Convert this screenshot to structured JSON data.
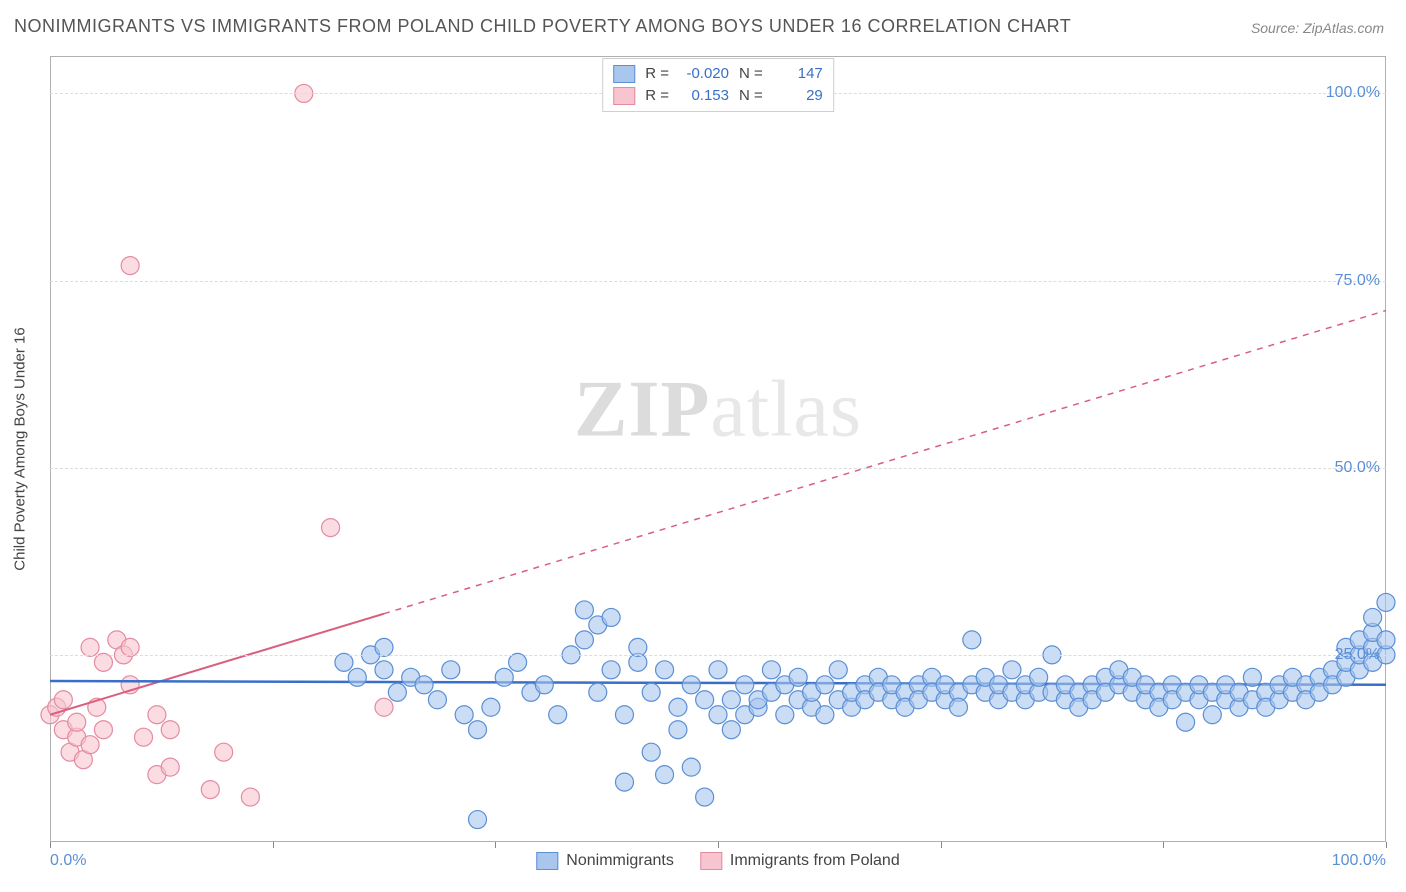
{
  "title": "NONIMMIGRANTS VS IMMIGRANTS FROM POLAND CHILD POVERTY AMONG BOYS UNDER 16 CORRELATION CHART",
  "source": "Source: ZipAtlas.com",
  "ylabel": "Child Poverty Among Boys Under 16",
  "watermark_a": "ZIP",
  "watermark_b": "atlas",
  "chart": {
    "type": "scatter",
    "xlim": [
      0,
      100
    ],
    "ylim": [
      0,
      105
    ],
    "yticks": [
      25,
      50,
      75,
      100
    ],
    "ytick_labels": [
      "25.0%",
      "50.0%",
      "75.0%",
      "100.0%"
    ],
    "xtick_marks": [
      0,
      16.67,
      33.33,
      50,
      66.67,
      83.33,
      100
    ],
    "xaxis_left": "0.0%",
    "xaxis_right": "100.0%",
    "grid_color": "#dcdcdc",
    "axis_color": "#b0b0b0",
    "series": {
      "blue": {
        "label": "Nonimmigrants",
        "fill": "#a9c7ec",
        "stroke": "#5b8fd6",
        "fill_opacity": 0.6,
        "marker_r": 9,
        "trend": {
          "y_at_x0": 21.5,
          "y_at_x100": 21.0,
          "color": "#3a6fc9",
          "width": 2.5
        },
        "R": "-0.020",
        "N": "147",
        "points": [
          [
            22,
            24
          ],
          [
            23,
            22
          ],
          [
            24,
            25
          ],
          [
            25,
            26
          ],
          [
            25,
            23
          ],
          [
            26,
            20
          ],
          [
            27,
            22
          ],
          [
            28,
            21
          ],
          [
            29,
            19
          ],
          [
            30,
            23
          ],
          [
            31,
            17
          ],
          [
            32,
            15
          ],
          [
            32,
            3
          ],
          [
            33,
            18
          ],
          [
            34,
            22
          ],
          [
            35,
            24
          ],
          [
            36,
            20
          ],
          [
            37,
            21
          ],
          [
            38,
            17
          ],
          [
            39,
            25
          ],
          [
            40,
            27
          ],
          [
            40,
            31
          ],
          [
            41,
            20
          ],
          [
            41,
            29
          ],
          [
            42,
            23
          ],
          [
            42,
            30
          ],
          [
            43,
            8
          ],
          [
            43,
            17
          ],
          [
            44,
            24
          ],
          [
            44,
            26
          ],
          [
            45,
            12
          ],
          [
            45,
            20
          ],
          [
            46,
            23
          ],
          [
            46,
            9
          ],
          [
            47,
            15
          ],
          [
            47,
            18
          ],
          [
            48,
            10
          ],
          [
            48,
            21
          ],
          [
            49,
            19
          ],
          [
            49,
            6
          ],
          [
            50,
            17
          ],
          [
            50,
            23
          ],
          [
            51,
            19
          ],
          [
            51,
            15
          ],
          [
            52,
            17
          ],
          [
            52,
            21
          ],
          [
            53,
            18
          ],
          [
            53,
            19
          ],
          [
            54,
            20
          ],
          [
            54,
            23
          ],
          [
            55,
            17
          ],
          [
            55,
            21
          ],
          [
            56,
            19
          ],
          [
            56,
            22
          ],
          [
            57,
            18
          ],
          [
            57,
            20
          ],
          [
            58,
            17
          ],
          [
            58,
            21
          ],
          [
            59,
            19
          ],
          [
            59,
            23
          ],
          [
            60,
            18
          ],
          [
            60,
            20
          ],
          [
            61,
            21
          ],
          [
            61,
            19
          ],
          [
            62,
            22
          ],
          [
            62,
            20
          ],
          [
            63,
            19
          ],
          [
            63,
            21
          ],
          [
            64,
            20
          ],
          [
            64,
            18
          ],
          [
            65,
            21
          ],
          [
            65,
            19
          ],
          [
            66,
            22
          ],
          [
            66,
            20
          ],
          [
            67,
            19
          ],
          [
            67,
            21
          ],
          [
            68,
            20
          ],
          [
            68,
            18
          ],
          [
            69,
            21
          ],
          [
            69,
            27
          ],
          [
            70,
            20
          ],
          [
            70,
            22
          ],
          [
            71,
            19
          ],
          [
            71,
            21
          ],
          [
            72,
            20
          ],
          [
            72,
            23
          ],
          [
            73,
            19
          ],
          [
            73,
            21
          ],
          [
            74,
            20
          ],
          [
            74,
            22
          ],
          [
            75,
            25
          ],
          [
            75,
            20
          ],
          [
            76,
            19
          ],
          [
            76,
            21
          ],
          [
            77,
            20
          ],
          [
            77,
            18
          ],
          [
            78,
            21
          ],
          [
            78,
            19
          ],
          [
            79,
            22
          ],
          [
            79,
            20
          ],
          [
            80,
            21
          ],
          [
            80,
            23
          ],
          [
            81,
            20
          ],
          [
            81,
            22
          ],
          [
            82,
            19
          ],
          [
            82,
            21
          ],
          [
            83,
            20
          ],
          [
            83,
            18
          ],
          [
            84,
            21
          ],
          [
            84,
            19
          ],
          [
            85,
            16
          ],
          [
            85,
            20
          ],
          [
            86,
            19
          ],
          [
            86,
            21
          ],
          [
            87,
            17
          ],
          [
            87,
            20
          ],
          [
            88,
            19
          ],
          [
            88,
            21
          ],
          [
            89,
            18
          ],
          [
            89,
            20
          ],
          [
            90,
            19
          ],
          [
            90,
            22
          ],
          [
            91,
            20
          ],
          [
            91,
            18
          ],
          [
            92,
            19
          ],
          [
            92,
            21
          ],
          [
            93,
            20
          ],
          [
            93,
            22
          ],
          [
            94,
            21
          ],
          [
            94,
            19
          ],
          [
            95,
            22
          ],
          [
            95,
            20
          ],
          [
            96,
            23
          ],
          [
            96,
            21
          ],
          [
            97,
            22
          ],
          [
            97,
            24
          ],
          [
            97,
            26
          ],
          [
            98,
            23
          ],
          [
            98,
            25
          ],
          [
            98,
            27
          ],
          [
            99,
            24
          ],
          [
            99,
            26
          ],
          [
            99,
            28
          ],
          [
            99,
            30
          ],
          [
            100,
            25
          ],
          [
            100,
            27
          ],
          [
            100,
            32
          ]
        ]
      },
      "pink": {
        "label": "Immigrants from Poland",
        "fill": "#f7c4cf",
        "stroke": "#e48ba0",
        "fill_opacity": 0.6,
        "marker_r": 9,
        "trend": {
          "y_at_x0": 17,
          "y_at_x100": 71,
          "color": "#d8607e",
          "width": 2,
          "solid_until_x": 25
        },
        "R": "0.153",
        "N": "29",
        "points": [
          [
            0,
            17
          ],
          [
            0.5,
            18
          ],
          [
            1,
            15
          ],
          [
            1,
            19
          ],
          [
            1.5,
            12
          ],
          [
            2,
            14
          ],
          [
            2,
            16
          ],
          [
            2.5,
            11
          ],
          [
            3,
            13
          ],
          [
            3,
            26
          ],
          [
            3.5,
            18
          ],
          [
            4,
            15
          ],
          [
            4,
            24
          ],
          [
            5,
            27
          ],
          [
            5.5,
            25
          ],
          [
            6,
            26
          ],
          [
            6,
            21
          ],
          [
            7,
            14
          ],
          [
            8,
            17
          ],
          [
            8,
            9
          ],
          [
            9,
            10
          ],
          [
            9,
            15
          ],
          [
            12,
            7
          ],
          [
            13,
            12
          ],
          [
            15,
            6
          ],
          [
            19,
            100
          ],
          [
            21,
            42
          ],
          [
            25,
            18
          ],
          [
            6,
            77
          ]
        ]
      }
    }
  },
  "stat_legend": {
    "rows": [
      {
        "swatch_fill": "#a9c7ec",
        "swatch_stroke": "#5b8fd6",
        "R_label": "R =",
        "R": "-0.020",
        "N_label": "N =",
        "N": "147"
      },
      {
        "swatch_fill": "#f7c4cf",
        "swatch_stroke": "#e48ba0",
        "R_label": "R =",
        "R": "0.153",
        "N_label": "N =",
        "N": "  29"
      }
    ]
  },
  "bottom_legend": {
    "items": [
      {
        "fill": "#a9c7ec",
        "stroke": "#5b8fd6",
        "label": "Nonimmigrants"
      },
      {
        "fill": "#f7c4cf",
        "stroke": "#e48ba0",
        "label": "Immigrants from Poland"
      }
    ]
  }
}
